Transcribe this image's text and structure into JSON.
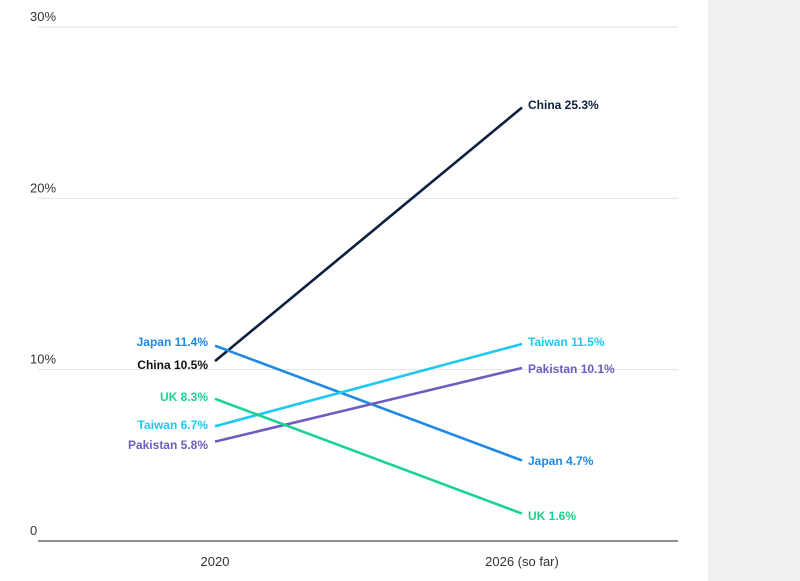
{
  "chart_data": {
    "type": "line",
    "title": "",
    "xlabel": "",
    "ylabel": "",
    "categories": [
      "2020",
      "2026 (so far)"
    ],
    "ylim": [
      0,
      30
    ],
    "y_ticks": [
      {
        "value": 0,
        "label": "0"
      },
      {
        "value": 10,
        "label": "10%"
      },
      {
        "value": 20,
        "label": "20%"
      },
      {
        "value": 30,
        "label": "30%"
      }
    ],
    "grid": true,
    "series": [
      {
        "name": "China",
        "values": [
          10.5,
          25.3
        ],
        "color": "#0b1f3f",
        "start_label": "China 10.5%",
        "end_label": "China 25.3%"
      },
      {
        "name": "Japan",
        "values": [
          11.4,
          4.7
        ],
        "color": "#1e88e5",
        "start_label": "Japan 11.4%",
        "end_label": "Japan 4.7%"
      },
      {
        "name": "Taiwan",
        "values": [
          6.7,
          11.5
        ],
        "color": "#1ec8f0",
        "start_label": "Taiwan 6.7%",
        "end_label": "Taiwan 11.5%"
      },
      {
        "name": "Pakistan",
        "values": [
          5.8,
          10.1
        ],
        "color": "#6a5fbf",
        "start_label": "Pakistan 5.8%",
        "end_label": "Pakistan 10.1%"
      },
      {
        "name": "UK",
        "values": [
          8.3,
          1.6
        ],
        "color": "#19d38f",
        "start_label": "UK 8.3%",
        "end_label": "UK 1.6%"
      }
    ]
  }
}
